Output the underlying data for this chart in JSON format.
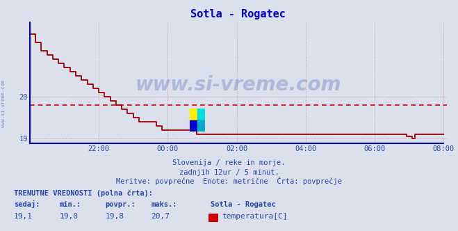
{
  "title": "Sotla - Rogatec",
  "background_color": "#dce0ec",
  "plot_bg_color": "#dce0ec",
  "line_color": "#990000",
  "avg_line_color": "#cc0000",
  "avg_value": 19.8,
  "border_color": "#0000bb",
  "grid_color": "#cc6666",
  "ylim": [
    18.88,
    21.8
  ],
  "yticks": [
    19,
    20
  ],
  "xtick_labels": [
    "22:00",
    "00:00",
    "02:00",
    "04:00",
    "06:00",
    "08:00"
  ],
  "xtick_positions": [
    24,
    48,
    72,
    96,
    120,
    144
  ],
  "total_points": 145,
  "footer_line1": "Slovenija / reke in morje.",
  "footer_line2": "zadnjih 12ur / 5 minut.",
  "footer_line3": "Meritve: povprečne  Enote: metrične  Črta: povprečje",
  "legend_title": "TRENUTNE VREDNOSTI (polna črta):",
  "legend_col1": "sedaj:",
  "legend_col2": "min.:",
  "legend_col3": "povpr.:",
  "legend_col4": "maks.:",
  "legend_col5": "Sotla - Rogatec",
  "legend_val1": "19,1",
  "legend_val2": "19,0",
  "legend_val3": "19,8",
  "legend_val4": "20,7",
  "legend_val5": "temperatura[C]",
  "legend_swatch_color": "#cc0000",
  "watermark_text": "www.si-vreme.com",
  "watermark_color": "#2244aa",
  "watermark_alpha": 0.25,
  "sidebar_text": "www.si-vreme.com",
  "sidebar_color": "#2244aa",
  "title_color": "#0000cc",
  "text_color": "#2244aa"
}
